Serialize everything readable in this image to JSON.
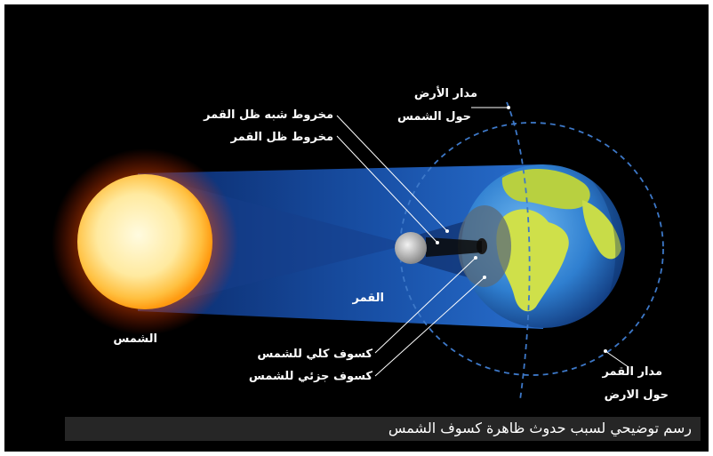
{
  "labels": {
    "earth_orbit_line1": "مدار الأرض",
    "earth_orbit_line2": "حول الشمس",
    "penumbra_cone": "مخروط شبه ظل القمر",
    "umbra_cone": "مخروط ظل القمر",
    "moon": "القمر",
    "sun": "الشمس",
    "total_eclipse": "كسوف كلي للشمس",
    "partial_eclipse": "كسوف جزئي للشمس",
    "moon_orbit_line1": "مدار القمر",
    "moon_orbit_line2": "حول الارض"
  },
  "caption": "رسم توضيحي لسبب حدوث ظاهرة كسوف الشمس",
  "colors": {
    "background": "#000000",
    "sun_core": "#fff6c8",
    "sun_glow": "#ff8a00",
    "shadow_beam": "#1e64c8",
    "ocean": "#2d7fd0",
    "land": "#cfe04a",
    "orbit_dash": "#3d78c8",
    "caption_bar": "#262626"
  }
}
